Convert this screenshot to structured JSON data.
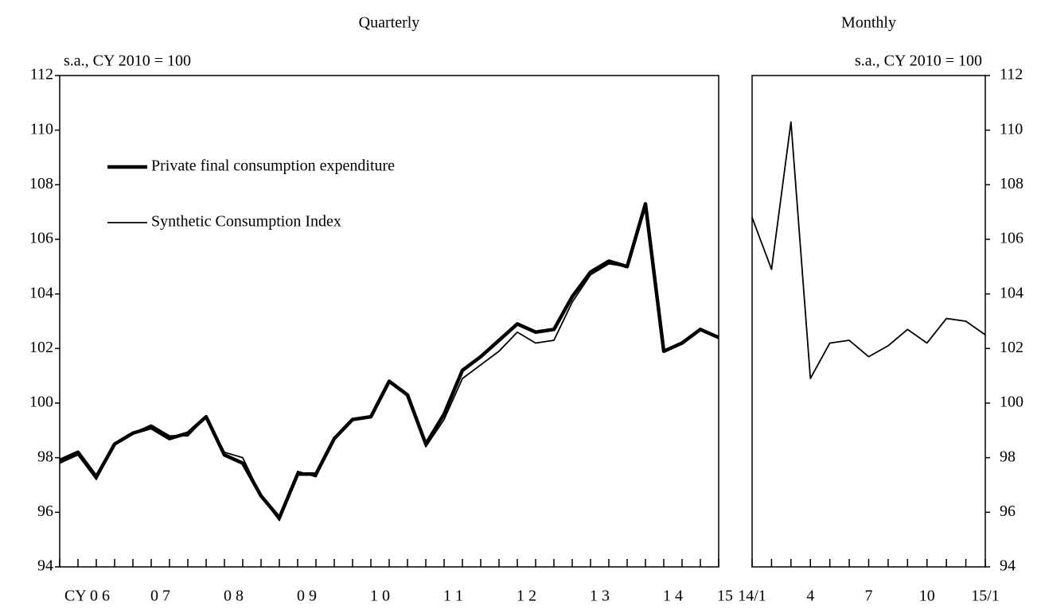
{
  "chart_data": [
    {
      "type": "line",
      "title": "Quarterly",
      "subtitle": "s.a., CY 2010 = 100",
      "categories": [
        null,
        "CY  0 6",
        null,
        null,
        null,
        "0 7",
        null,
        null,
        null,
        "0 8",
        null,
        null,
        null,
        "0 9",
        null,
        null,
        null,
        "1 0",
        null,
        null,
        null,
        "1 1",
        null,
        null,
        null,
        "1 2",
        null,
        null,
        null,
        "1 3",
        null,
        null,
        null,
        "1 4",
        null,
        null,
        "15"
      ],
      "series": [
        {
          "name": "Private final consumption expenditure",
          "color": "#000000",
          "width": "thick",
          "values": [
            97.9,
            98.2,
            97.3,
            98.5,
            98.9,
            99.1,
            98.7,
            98.9,
            99.5,
            98.1,
            97.8,
            96.6,
            95.8,
            97.4,
            97.4,
            98.7,
            99.4,
            99.5,
            100.8,
            100.3,
            98.5,
            99.6,
            101.2,
            101.7,
            102.3,
            102.9,
            102.6,
            102.7,
            103.9,
            104.8,
            105.2,
            105.0,
            107.3,
            101.9,
            102.2,
            102.7,
            102.4
          ]
        },
        {
          "name": "Synthetic Consumption Index",
          "color": "#000000",
          "width": "thin",
          "values": [
            97.8,
            98.1,
            97.2,
            98.5,
            98.9,
            99.2,
            98.8,
            98.8,
            99.5,
            98.2,
            98.0,
            96.6,
            95.7,
            97.5,
            97.3,
            98.7,
            99.4,
            99.5,
            100.8,
            100.3,
            98.4,
            99.4,
            100.9,
            101.4,
            101.9,
            102.6,
            102.2,
            102.3,
            103.7,
            104.7,
            105.1,
            105.0,
            107.2,
            101.9,
            102.2,
            102.7,
            102.4
          ]
        }
      ],
      "ylim": [
        94,
        112
      ],
      "yticks": [
        94,
        96,
        98,
        100,
        102,
        104,
        106,
        108,
        110,
        112
      ],
      "legend": "upper left"
    },
    {
      "type": "line",
      "title": "Monthly",
      "subtitle": "s.a., CY 2010 = 100",
      "categories": [
        "14/1",
        null,
        null,
        "4",
        null,
        null,
        "7",
        null,
        null,
        "10",
        null,
        null,
        "15/1"
      ],
      "series": [
        {
          "name": "Synthetic Consumption Index",
          "color": "#000000",
          "width": "thin",
          "values": [
            106.8,
            104.9,
            110.3,
            100.9,
            102.2,
            102.3,
            101.7,
            102.1,
            102.7,
            102.2,
            103.1,
            103.0,
            102.5
          ]
        }
      ],
      "ylim": [
        94,
        112
      ],
      "yticks": [
        94,
        96,
        98,
        100,
        102,
        104,
        106,
        108,
        110,
        112
      ],
      "axis_side": "right"
    }
  ]
}
